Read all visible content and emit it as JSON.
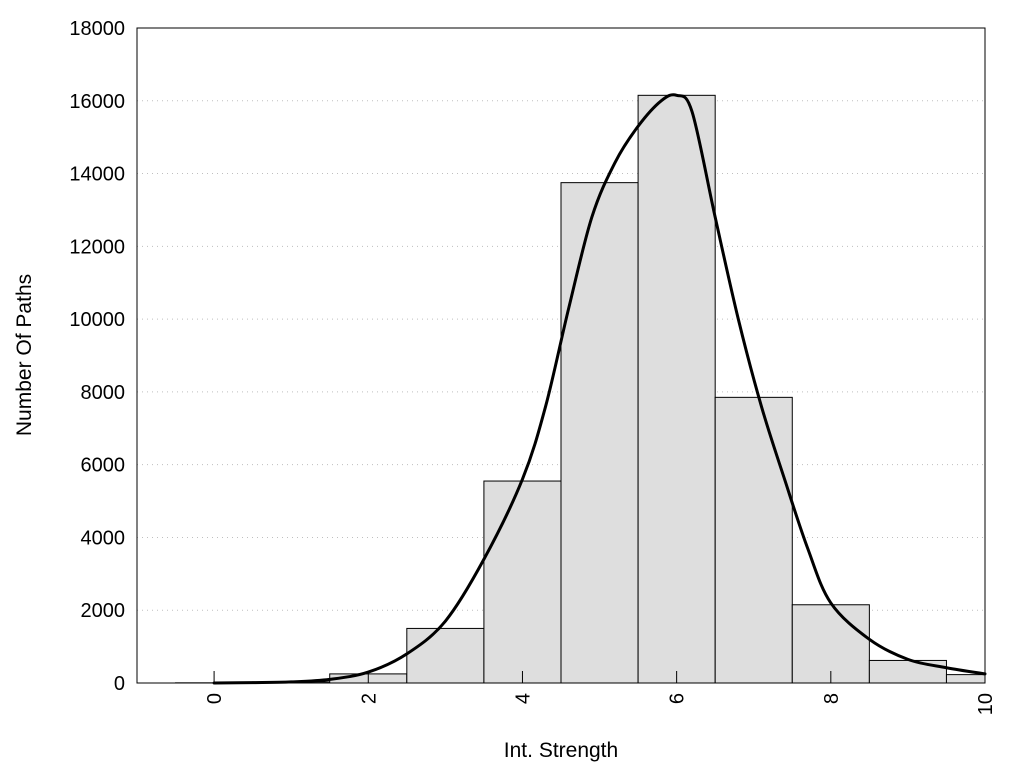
{
  "chart_data": {
    "type": "bar",
    "title": "",
    "xlabel": "Int. Strength",
    "ylabel": "Number Of Paths",
    "xlim": [
      -1,
      10
    ],
    "ylim": [
      0,
      18000
    ],
    "x_ticks": [
      "0",
      "2",
      "4",
      "6",
      "8",
      "10"
    ],
    "y_ticks": [
      "0",
      "2000",
      "4000",
      "6000",
      "8000",
      "10000",
      "12000",
      "14000",
      "16000",
      "18000"
    ],
    "grid": "horizontal dotted",
    "bars": {
      "x": [
        0,
        1,
        2,
        3,
        4,
        5,
        6,
        7,
        8,
        9,
        10
      ],
      "values": [
        5,
        30,
        250,
        1500,
        5550,
        13750,
        16150,
        7850,
        2150,
        620,
        230
      ]
    },
    "curve": {
      "x": [
        0,
        0.5,
        1,
        1.5,
        2,
        2.5,
        3,
        3.5,
        4,
        4.3,
        4.6,
        4.9,
        5.2,
        5.5,
        5.8,
        6.0,
        6.2,
        6.5,
        6.8,
        7.1,
        7.4,
        7.7,
        8.0,
        8.5,
        9.0,
        9.5,
        10.0
      ],
      "y": [
        0,
        10,
        30,
        100,
        300,
        800,
        1700,
        3400,
        5600,
        7600,
        10300,
        12800,
        14300,
        15300,
        16000,
        16150,
        15700,
        12800,
        10000,
        7600,
        5600,
        3700,
        2200,
        1200,
        650,
        420,
        250
      ]
    },
    "colors": {
      "bar_fill": "#dedede",
      "bar_stroke": "#000000",
      "curve": "#000000"
    }
  }
}
